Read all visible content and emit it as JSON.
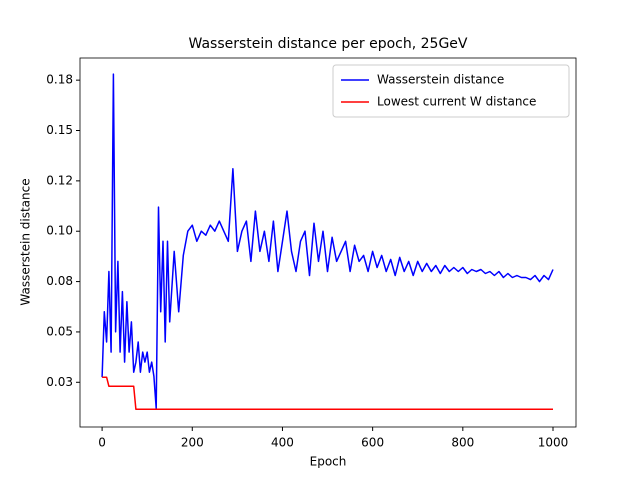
{
  "chart_data": {
    "type": "line",
    "title": "Wasserstein distance per epoch, 25GeV",
    "x_label": "Epoch",
    "y_label": "Wasserstein distance",
    "x": [
      0,
      5,
      10,
      15,
      20,
      25,
      30,
      35,
      40,
      45,
      50,
      55,
      60,
      65,
      70,
      75,
      80,
      85,
      90,
      95,
      100,
      105,
      110,
      115,
      120,
      125,
      130,
      135,
      140,
      145,
      150,
      160,
      170,
      180,
      190,
      200,
      210,
      220,
      230,
      240,
      250,
      260,
      270,
      280,
      290,
      300,
      310,
      320,
      330,
      340,
      350,
      360,
      370,
      380,
      390,
      400,
      410,
      420,
      430,
      440,
      450,
      460,
      470,
      480,
      490,
      500,
      510,
      520,
      530,
      540,
      550,
      560,
      570,
      580,
      590,
      600,
      610,
      620,
      630,
      640,
      650,
      660,
      670,
      680,
      690,
      700,
      710,
      720,
      730,
      740,
      750,
      760,
      770,
      780,
      790,
      800,
      810,
      820,
      830,
      840,
      850,
      860,
      870,
      880,
      890,
      900,
      910,
      920,
      930,
      940,
      950,
      960,
      970,
      980,
      990,
      1000
    ],
    "series": [
      {
        "name": "Wasserstein distance",
        "color": "#0000ff",
        "values": [
          0.0275,
          0.06,
          0.045,
          0.08,
          0.04,
          0.178,
          0.05,
          0.085,
          0.04,
          0.07,
          0.035,
          0.065,
          0.04,
          0.055,
          0.03,
          0.035,
          0.045,
          0.03,
          0.04,
          0.035,
          0.04,
          0.03,
          0.035,
          0.028,
          0.012,
          0.112,
          0.06,
          0.095,
          0.045,
          0.095,
          0.055,
          0.09,
          0.06,
          0.088,
          0.1,
          0.103,
          0.095,
          0.1,
          0.098,
          0.103,
          0.1,
          0.105,
          0.1,
          0.095,
          0.131,
          0.09,
          0.1,
          0.105,
          0.085,
          0.11,
          0.09,
          0.1,
          0.085,
          0.105,
          0.08,
          0.095,
          0.11,
          0.09,
          0.08,
          0.095,
          0.1,
          0.078,
          0.104,
          0.085,
          0.1,
          0.08,
          0.097,
          0.085,
          0.09,
          0.095,
          0.08,
          0.093,
          0.085,
          0.088,
          0.08,
          0.09,
          0.082,
          0.088,
          0.08,
          0.086,
          0.078,
          0.087,
          0.08,
          0.085,
          0.078,
          0.085,
          0.08,
          0.084,
          0.08,
          0.083,
          0.079,
          0.083,
          0.08,
          0.082,
          0.08,
          0.082,
          0.079,
          0.081,
          0.08,
          0.081,
          0.079,
          0.08,
          0.078,
          0.08,
          0.077,
          0.079,
          0.077,
          0.078,
          0.077,
          0.077,
          0.076,
          0.078,
          0.075,
          0.078,
          0.076,
          0.081
        ]
      },
      {
        "name": "Lowest current W distance",
        "color": "#ff0000",
        "values": [
          0.0275,
          0.0275,
          0.0275,
          0.023,
          0.023,
          0.023,
          0.023,
          0.023,
          0.023,
          0.023,
          0.023,
          0.023,
          0.023,
          0.023,
          0.023,
          0.0116,
          0.0116,
          0.0116,
          0.0116,
          0.0116,
          0.0116,
          0.0116,
          0.0116,
          0.0116,
          0.0116,
          0.0116,
          0.0116,
          0.0116,
          0.0116,
          0.0116,
          0.0116,
          0.0116,
          0.0116,
          0.0116,
          0.0116,
          0.0116,
          0.0116,
          0.0116,
          0.0116,
          0.0116,
          0.0116,
          0.0116,
          0.0116,
          0.0116,
          0.0116,
          0.0116,
          0.0116,
          0.0116,
          0.0116,
          0.0116,
          0.0116,
          0.0116,
          0.0116,
          0.0116,
          0.0116,
          0.0116,
          0.0116,
          0.0116,
          0.0116,
          0.0116,
          0.0116,
          0.0116,
          0.0116,
          0.0116,
          0.0116,
          0.0116,
          0.0116,
          0.0116,
          0.0116,
          0.0116,
          0.0116,
          0.0116,
          0.0116,
          0.0116,
          0.0116,
          0.0116,
          0.0116,
          0.0116,
          0.0116,
          0.0116,
          0.0116,
          0.0116,
          0.0116,
          0.0116,
          0.0116,
          0.0116,
          0.0116,
          0.0116,
          0.0116,
          0.0116,
          0.0116,
          0.0116,
          0.0116,
          0.0116,
          0.0116,
          0.0116,
          0.0116,
          0.0116,
          0.0116,
          0.0116,
          0.0116,
          0.0116,
          0.0116,
          0.0116,
          0.0116,
          0.0116,
          0.0116,
          0.0116,
          0.0116,
          0.0116,
          0.0116,
          0.0116,
          0.0116,
          0.0116,
          0.0116,
          0.0116
        ]
      }
    ],
    "xlim": [
      -49,
      1051
    ],
    "xticks": [
      0,
      200,
      400,
      600,
      800,
      1000
    ],
    "ylim": [
      0.0028,
      0.186
    ],
    "yticks": [
      {
        "value": 0.025,
        "label": "0.03"
      },
      0.05,
      {
        "value": 0.075,
        "label": "0.08"
      },
      {
        "value": 0.1,
        "label": "0.10"
      },
      {
        "value": 0.125,
        "label": "0.12"
      },
      0.15,
      {
        "value": 0.175,
        "label": "0.18"
      }
    ],
    "legend": "upper right",
    "grid": false
  }
}
